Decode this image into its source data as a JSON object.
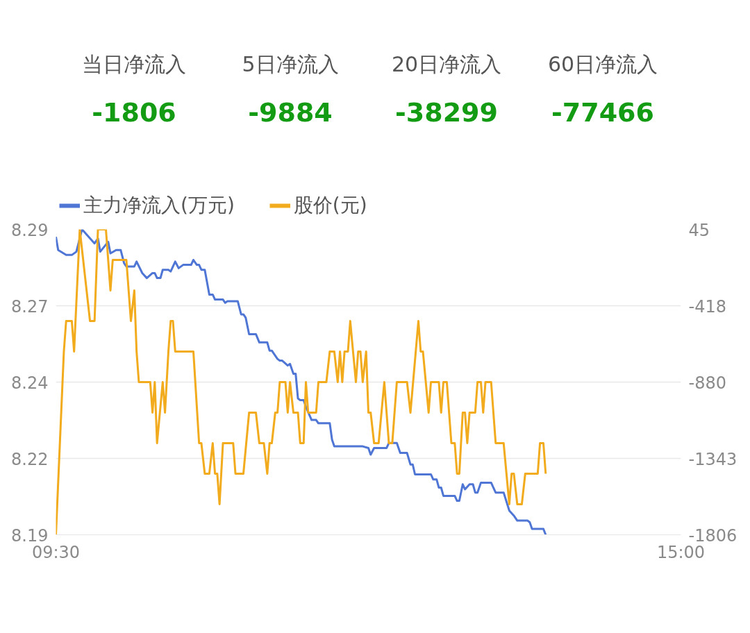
{
  "chart_data": [
    {
      "type": "other",
      "categories": [
        "当日净流入",
        "5日净流入",
        "20日净流入",
        "60日净流入"
      ],
      "values": [
        -1806,
        -9884,
        -38299,
        -77466
      ],
      "data_labels": true,
      "color": "#139c13"
    },
    {
      "type": "line",
      "xlim": [
        9.5,
        15
      ],
      "xticks": [
        {
          "value": 9.5,
          "label": "09:30"
        },
        {
          "value": 15,
          "label": "15:00"
        }
      ],
      "ylim": [
        8.19,
        8.29
      ],
      "yticks": [
        {
          "value": 8.19,
          "label": "8.19"
        },
        {
          "value": 8.215,
          "label": "8.22"
        },
        {
          "value": 8.24,
          "label": "8.24"
        },
        {
          "value": 8.265,
          "label": "8.27"
        },
        {
          "value": 8.29,
          "label": "8.29"
        }
      ],
      "y2lim": [
        -1806,
        45
      ],
      "y2ticks": [
        {
          "value": -1806,
          "label": "-1806"
        },
        {
          "value": -1343.25,
          "label": "-1343"
        },
        {
          "value": -880.5,
          "label": "-880"
        },
        {
          "value": -417.75,
          "label": "-418"
        },
        {
          "value": 45,
          "label": "45"
        }
      ],
      "grid": "y",
      "legend": "top left",
      "line_style": "solid",
      "marker": "none",
      "series": [
        {
          "name": "主力净流入(万元)",
          "color": "#4f76d4",
          "axis": "y2",
          "x": [
            9.5,
            9.52,
            9.59,
            9.64,
            9.68,
            9.73,
            9.84,
            9.87,
            9.89,
            9.96,
            9.98,
            10.03,
            10.07,
            10.1,
            10.12,
            10.19,
            10.21,
            10.26,
            10.3,
            10.35,
            10.37,
            10.39,
            10.42,
            10.44,
            10.49,
            10.51,
            10.55,
            10.58,
            10.62,
            10.69,
            10.71,
            10.74,
            10.76,
            10.78,
            10.81,
            10.85,
            10.88,
            10.9,
            10.97,
            10.99,
            11.01,
            11.1,
            11.13,
            11.15,
            11.17,
            11.2,
            11.26,
            11.29,
            11.36,
            11.38,
            11.4,
            11.45,
            11.47,
            11.49,
            11.54,
            11.56,
            11.59,
            11.61,
            11.63,
            11.65,
            11.68,
            11.7,
            11.75,
            11.79,
            11.81,
            11.91,
            11.93,
            11.95,
            12.07,
            12.11,
            12.2,
            12.25,
            12.27,
            12.3,
            12.41,
            12.43,
            12.5,
            12.53,
            12.59,
            12.62,
            12.64,
            12.66,
            12.8,
            12.82,
            12.85,
            12.87,
            12.89,
            12.91,
            13.01,
            13.03,
            13.05,
            13.08,
            13.1,
            13.14,
            13.17,
            13.19,
            13.21,
            13.24,
            13.33,
            13.35,
            13.37,
            13.4,
            13.44,
            13.49,
            13.53,
            13.56,
            13.65,
            13.67,
            13.69,
            13.79,
            13.81
          ],
          "values": [
            0,
            -80,
            -110,
            -110,
            -90,
            45,
            -40,
            -10,
            -90,
            -30,
            -100,
            -80,
            -80,
            -160,
            -180,
            -180,
            -150,
            -220,
            -250,
            -220,
            -220,
            -250,
            -250,
            -200,
            -200,
            -210,
            -150,
            -190,
            -170,
            -170,
            -140,
            -170,
            -170,
            -200,
            -200,
            -350,
            -350,
            -380,
            -380,
            -400,
            -390,
            -390,
            -470,
            -470,
            -490,
            -590,
            -590,
            -640,
            -640,
            -690,
            -690,
            -740,
            -750,
            -750,
            -780,
            -770,
            -830,
            -830,
            -980,
            -990,
            -990,
            -1030,
            -1110,
            -1110,
            -1130,
            -1130,
            -1230,
            -1270,
            -1270,
            -1270,
            -1270,
            -1280,
            -1320,
            -1280,
            -1280,
            -1250,
            -1250,
            -1310,
            -1310,
            -1380,
            -1380,
            -1440,
            -1440,
            -1470,
            -1470,
            -1520,
            -1520,
            -1570,
            -1570,
            -1600,
            -1600,
            -1500,
            -1530,
            -1500,
            -1500,
            -1550,
            -1550,
            -1490,
            -1490,
            -1520,
            -1550,
            -1550,
            -1550,
            -1660,
            -1690,
            -1720,
            -1720,
            -1730,
            -1770,
            -1770,
            -1806
          ]
        },
        {
          "name": "股价(元)",
          "color": "#f2ab1c",
          "x": [
            9.5,
            9.57,
            9.59,
            9.64,
            9.66,
            9.71,
            9.8,
            9.84,
            9.87,
            9.94,
            9.98,
            10.0,
            10.12,
            10.16,
            10.19,
            10.21,
            10.23,
            10.33,
            10.35,
            10.37,
            10.39,
            10.44,
            10.46,
            10.49,
            10.51,
            10.53,
            10.55,
            10.71,
            10.76,
            10.78,
            10.81,
            10.85,
            10.88,
            10.9,
            10.92,
            10.94,
            10.97,
            11.06,
            11.08,
            11.15,
            11.2,
            11.26,
            11.29,
            11.33,
            11.36,
            11.38,
            11.4,
            11.43,
            11.45,
            11.47,
            11.52,
            11.54,
            11.56,
            11.59,
            11.63,
            11.65,
            11.68,
            11.7,
            11.72,
            11.79,
            11.81,
            11.88,
            11.91,
            11.95,
            11.98,
            12.0,
            12.02,
            12.04,
            12.07,
            12.09,
            12.14,
            12.16,
            12.18,
            12.2,
            12.23,
            12.25,
            12.27,
            12.3,
            12.34,
            12.39,
            12.43,
            12.46,
            12.5,
            12.59,
            12.62,
            12.69,
            12.71,
            12.73,
            12.78,
            12.8,
            12.87,
            12.89,
            12.91,
            12.94,
            12.98,
            13.01,
            13.03,
            13.05,
            13.08,
            13.1,
            13.12,
            13.14,
            13.19,
            13.21,
            13.24,
            13.26,
            13.28,
            13.33,
            13.37,
            13.44,
            13.49,
            13.51,
            13.53,
            13.56,
            13.6,
            13.63,
            13.74,
            13.76,
            13.79,
            13.81
          ],
          "values": [
            8.19,
            8.25,
            8.26,
            8.26,
            8.25,
            8.29,
            8.26,
            8.26,
            8.29,
            8.29,
            8.27,
            8.28,
            8.28,
            8.26,
            8.27,
            8.25,
            8.24,
            8.24,
            8.23,
            8.24,
            8.22,
            8.24,
            8.23,
            8.25,
            8.26,
            8.26,
            8.25,
            8.25,
            8.22,
            8.22,
            8.21,
            8.21,
            8.22,
            8.21,
            8.21,
            8.2,
            8.22,
            8.22,
            8.21,
            8.21,
            8.23,
            8.23,
            8.22,
            8.22,
            8.21,
            8.22,
            8.22,
            8.23,
            8.23,
            8.24,
            8.24,
            8.23,
            8.24,
            8.23,
            8.23,
            8.22,
            8.22,
            8.24,
            8.23,
            8.23,
            8.24,
            8.24,
            8.25,
            8.25,
            8.24,
            8.25,
            8.24,
            8.25,
            8.25,
            8.26,
            8.24,
            8.25,
            8.25,
            8.24,
            8.25,
            8.23,
            8.23,
            8.22,
            8.22,
            8.24,
            8.22,
            8.22,
            8.24,
            8.24,
            8.23,
            8.26,
            8.25,
            8.25,
            8.23,
            8.24,
            8.24,
            8.23,
            8.24,
            8.24,
            8.22,
            8.22,
            8.21,
            8.21,
            8.23,
            8.23,
            8.22,
            8.23,
            8.23,
            8.24,
            8.24,
            8.23,
            8.24,
            8.24,
            8.22,
            8.22,
            8.2,
            8.21,
            8.21,
            8.2,
            8.2,
            8.21,
            8.21,
            8.22,
            8.22,
            8.21
          ]
        }
      ]
    }
  ]
}
